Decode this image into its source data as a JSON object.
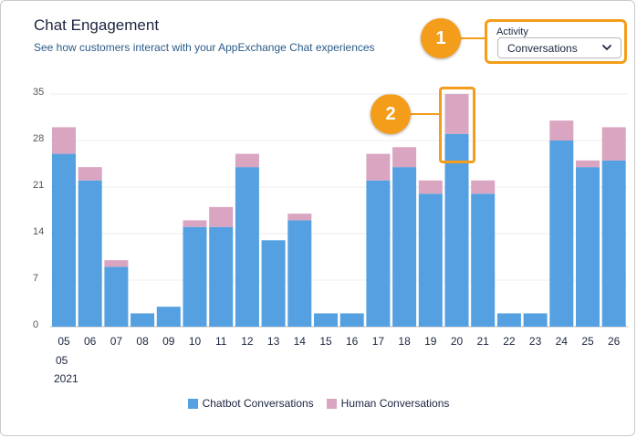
{
  "header": {
    "title": "Chat Engagement",
    "subtitle": "See how customers interact with your AppExchange Chat experiences"
  },
  "filter": {
    "label": "Activity",
    "selected": "Conversations",
    "icon": "chevron-down-icon"
  },
  "callouts": [
    "1",
    "2"
  ],
  "colors": {
    "chatbot": "#54a0e0",
    "human": "#d9a5c1",
    "accent": "#f49d1b"
  },
  "x_subtitle": {
    "month": "05",
    "year": "2021"
  },
  "chart_data": {
    "type": "bar",
    "stacked": true,
    "categories": [
      "05",
      "06",
      "07",
      "08",
      "09",
      "10",
      "11",
      "12",
      "13",
      "14",
      "15",
      "16",
      "17",
      "18",
      "19",
      "20",
      "21",
      "22",
      "23",
      "24",
      "25",
      "26"
    ],
    "series": [
      {
        "name": "Chatbot Conversations",
        "values": [
          26,
          22,
          9,
          2,
          3,
          15,
          15,
          24,
          13,
          16,
          2,
          2,
          22,
          24,
          20,
          29,
          20,
          2,
          2,
          28,
          24,
          25
        ]
      },
      {
        "name": "Human Conversations",
        "values": [
          4,
          2,
          1,
          0,
          0,
          1,
          3,
          2,
          0,
          1,
          0,
          0,
          4,
          3,
          2,
          6,
          2,
          0,
          0,
          3,
          1,
          5
        ]
      }
    ],
    "yticks": [
      0,
      7,
      14,
      21,
      28,
      35
    ],
    "ylim": [
      0,
      35
    ],
    "grid": true,
    "legend": "bottom"
  }
}
